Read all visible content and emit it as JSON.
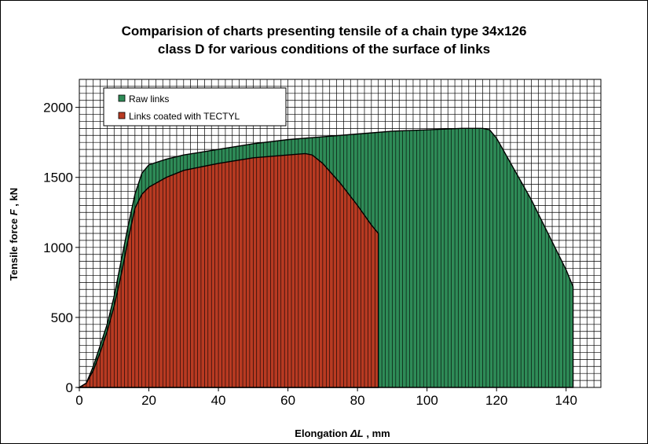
{
  "chart_data": {
    "type": "area",
    "title_line1": "Comparision of charts presenting tensile of a chain type 34x126",
    "title_line2": "class D for various conditions of the surface of links",
    "xlabel_prefix": "Elongation ",
    "xlabel_symbol": "ΔL",
    "xlabel_suffix": " , mm",
    "ylabel_prefix": "Tensile force ",
    "ylabel_symbol": "F",
    "ylabel_suffix": " , kN",
    "xlim": [
      0,
      150
    ],
    "ylim": [
      0,
      2200
    ],
    "xticks": [
      0,
      20,
      40,
      60,
      80,
      100,
      120,
      140
    ],
    "yticks": [
      0,
      500,
      1000,
      1500,
      2000
    ],
    "grid": true,
    "legend_position": "top-left",
    "series": [
      {
        "name": "Raw links",
        "color": "#2e8b57",
        "points": [
          [
            0,
            0
          ],
          [
            2,
            30
          ],
          [
            4,
            150
          ],
          [
            6,
            300
          ],
          [
            8,
            450
          ],
          [
            10,
            650
          ],
          [
            12,
            900
          ],
          [
            14,
            1150
          ],
          [
            16,
            1380
          ],
          [
            18,
            1530
          ],
          [
            20,
            1590
          ],
          [
            25,
            1630
          ],
          [
            30,
            1660
          ],
          [
            40,
            1700
          ],
          [
            50,
            1740
          ],
          [
            60,
            1770
          ],
          [
            70,
            1790
          ],
          [
            80,
            1810
          ],
          [
            90,
            1830
          ],
          [
            100,
            1840
          ],
          [
            110,
            1850
          ],
          [
            116,
            1850
          ],
          [
            118,
            1840
          ],
          [
            120,
            1780
          ],
          [
            125,
            1560
          ],
          [
            130,
            1340
          ],
          [
            135,
            1090
          ],
          [
            140,
            840
          ],
          [
            142,
            720
          ],
          [
            142,
            0
          ]
        ]
      },
      {
        "name": "Links coated with TECTYL",
        "color": "#b83a22",
        "points": [
          [
            0,
            0
          ],
          [
            2,
            30
          ],
          [
            4,
            120
          ],
          [
            6,
            250
          ],
          [
            8,
            400
          ],
          [
            10,
            580
          ],
          [
            12,
            800
          ],
          [
            14,
            1050
          ],
          [
            16,
            1280
          ],
          [
            18,
            1380
          ],
          [
            20,
            1430
          ],
          [
            25,
            1500
          ],
          [
            30,
            1550
          ],
          [
            40,
            1600
          ],
          [
            50,
            1640
          ],
          [
            60,
            1660
          ],
          [
            65,
            1670
          ],
          [
            67,
            1660
          ],
          [
            70,
            1600
          ],
          [
            75,
            1460
          ],
          [
            80,
            1300
          ],
          [
            84,
            1160
          ],
          [
            86,
            1100
          ],
          [
            86,
            0
          ]
        ]
      }
    ]
  }
}
